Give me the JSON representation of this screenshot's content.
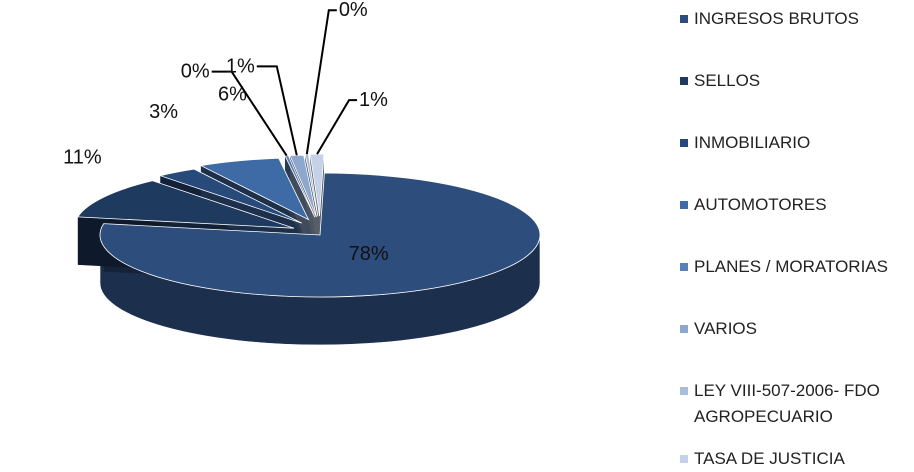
{
  "chart_data": {
    "type": "pie",
    "categories": [
      "INGRESOS BRUTOS",
      "SELLOS",
      "INMOBILIARIO",
      "AUTOMOTORES",
      "PLANES / MORATORIAS",
      "VARIOS",
      "LEY VIII-507-2006- FDO AGROPECUARIO",
      "TASA DE JUSTICIA"
    ],
    "values": [
      78,
      11,
      3,
      6,
      0,
      1,
      0,
      1
    ],
    "labels": [
      "78%",
      "11%",
      "3%",
      "6%",
      "0%",
      "1%",
      "0%",
      "1%"
    ],
    "colors": [
      "#2d4d7c",
      "#1f3a5f",
      "#274a7a",
      "#3e6aa6",
      "#5a82b8",
      "#8ea7cc",
      "#a9bcdc",
      "#c4d1e8"
    ],
    "legend_position": "right"
  }
}
